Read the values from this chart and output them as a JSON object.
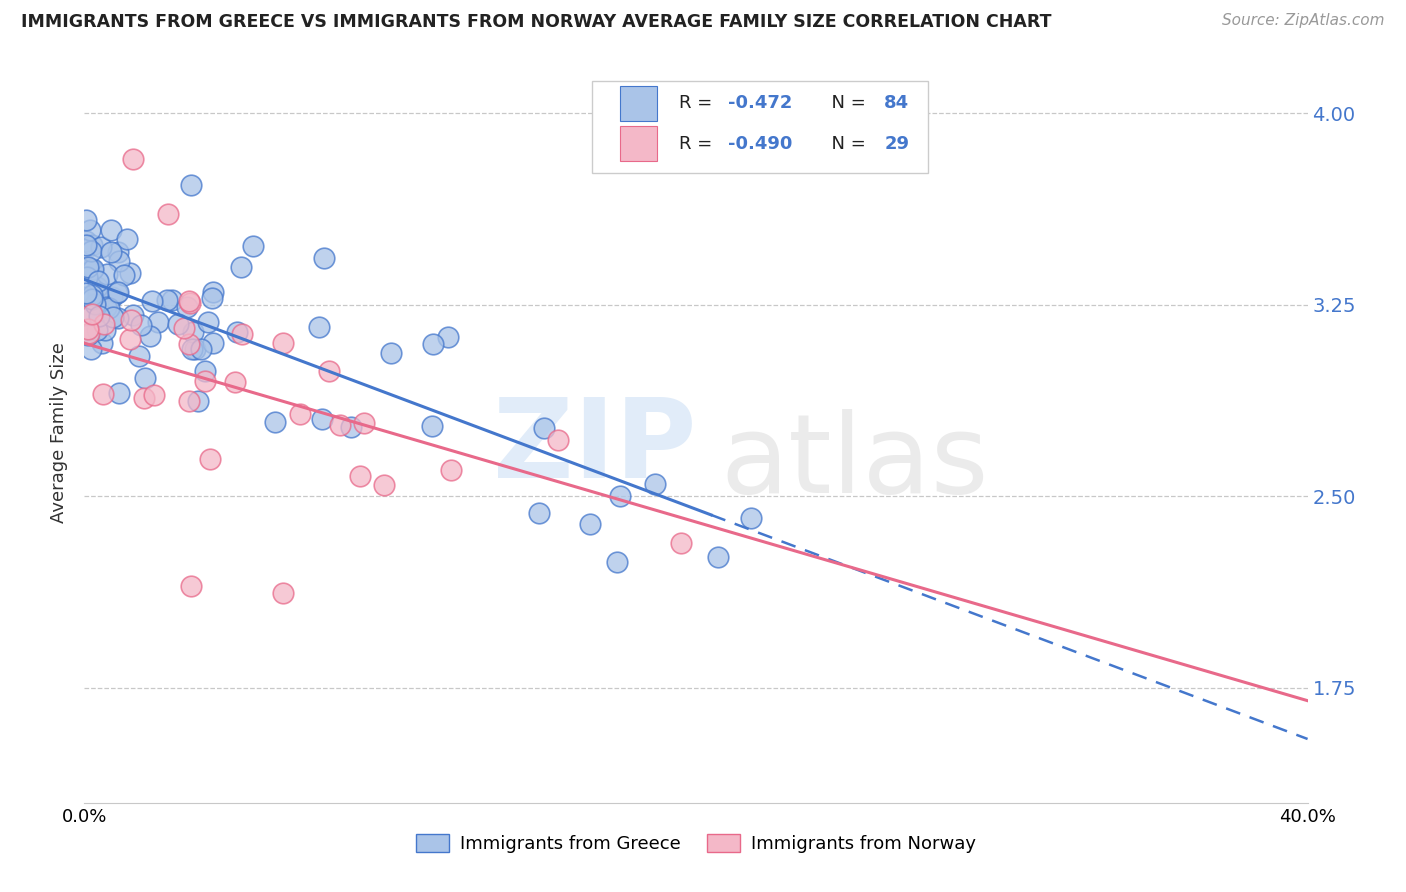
{
  "title": "IMMIGRANTS FROM GREECE VS IMMIGRANTS FROM NORWAY AVERAGE FAMILY SIZE CORRELATION CHART",
  "source": "Source: ZipAtlas.com",
  "ylabel": "Average Family Size",
  "x_min": 0.0,
  "x_max": 0.4,
  "y_min": 1.3,
  "y_max": 4.2,
  "yticks": [
    1.75,
    2.5,
    3.25,
    4.0
  ],
  "xticks": [
    0.0,
    0.05,
    0.1,
    0.15,
    0.2,
    0.25,
    0.3,
    0.35,
    0.4
  ],
  "legend_label1": "Immigrants from Greece",
  "legend_label2": "Immigrants from Norway",
  "legend_R1": "-0.472",
  "legend_N1": "84",
  "legend_R2": "-0.490",
  "legend_N2": "29",
  "color_greece": "#aac4e8",
  "color_norway": "#f4b8c8",
  "line_color_greece": "#4477cc",
  "line_color_norway": "#e8698a",
  "text_color_blue": "#4477cc",
  "background_color": "#ffffff",
  "greece_intercept": 3.35,
  "greece_slope": -4.5,
  "norway_intercept": 3.1,
  "norway_slope": -3.5,
  "greece_line_x_start": 0.0,
  "greece_line_x_solid_end": 0.205,
  "greece_line_x_dashed_end": 0.4,
  "norway_line_x_start": 0.0,
  "norway_line_x_end": 0.4
}
